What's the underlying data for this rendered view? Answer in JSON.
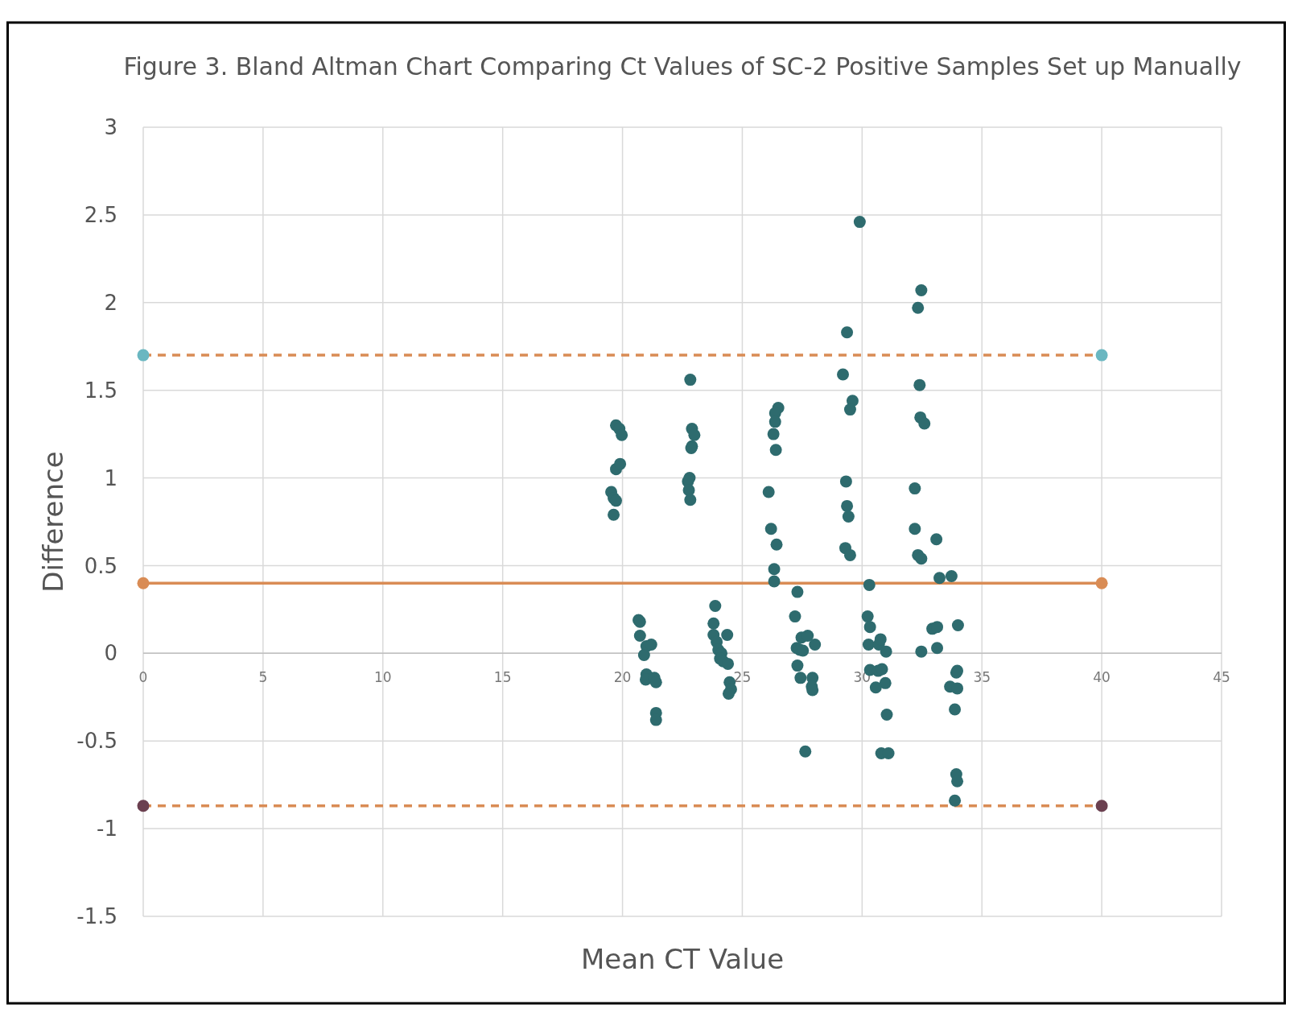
{
  "chart_data": {
    "type": "scatter",
    "title": "Figure 3. Bland Altman Chart Comparing Ct Values of SC-2 Positive Samples Set up Manually",
    "xlabel": "Mean CT Value",
    "ylabel": "Difference",
    "xlim": [
      0,
      45
    ],
    "xticks": [
      0,
      5,
      10,
      15,
      20,
      25,
      30,
      35,
      40,
      45
    ],
    "ylim": [
      -1.5,
      3
    ],
    "yticks": [
      -1.5,
      -1,
      -0.5,
      0,
      0.5,
      1,
      1.5,
      2,
      2.5,
      3
    ],
    "grid": true,
    "marker": "circle",
    "series": [
      {
        "color": "#2e6b6e",
        "x": [
          19.53,
          19.63,
          19.73,
          19.63,
          19.73,
          19.87,
          19.97,
          19.73,
          19.9,
          20.67,
          20.73,
          20.73,
          21,
          21.2,
          20.9,
          21,
          20.97,
          21.33,
          21.4,
          21.4,
          21.4,
          22.83,
          22.9,
          23,
          22.9,
          22.8,
          22.73,
          22.77,
          22.83,
          22.87,
          23.87,
          23.8,
          23.8,
          23.93,
          24,
          24.13,
          24.07,
          24.2,
          24.37,
          24.4,
          24.47,
          24.53,
          24.43,
          26.1,
          26.5,
          26.37,
          26.37,
          26.3,
          26.4,
          26.2,
          26.43,
          26.33,
          26.33,
          27.3,
          27.2,
          27.47,
          27.73,
          27.27,
          27.4,
          27.53,
          28.03,
          27.3,
          27.43,
          27.93,
          27.9,
          27.93,
          27.63,
          29.9,
          29.37,
          29.2,
          29.6,
          29.5,
          29.33,
          29.37,
          29.43,
          29.3,
          29.5,
          30.3,
          30.23,
          30.33,
          30.27,
          30.7,
          30.77,
          31,
          30.33,
          30.67,
          30.83,
          30.97,
          30.57,
          31.03,
          30.8,
          31.1,
          32.47,
          32.33,
          32.4,
          32.43,
          32.6,
          32.2,
          32.2,
          32.33,
          32.47,
          32.47,
          33.1,
          33.23,
          33.73,
          32.93,
          33.13,
          33.13,
          34,
          33.67,
          33.93,
          33.97,
          33.97,
          33.87,
          33.93,
          33.97,
          33.87
        ],
        "values": [
          0.92,
          0.885,
          0.87,
          0.79,
          1.3,
          1.28,
          1.245,
          1.05,
          1.08,
          0.19,
          0.18,
          0.1,
          0.04,
          0.05,
          -0.01,
          -0.12,
          -0.15,
          -0.14,
          -0.165,
          -0.34,
          -0.38,
          1.56,
          1.28,
          1.245,
          1.18,
          1,
          0.98,
          0.93,
          0.875,
          1.17,
          0.27,
          0.17,
          0.105,
          0.065,
          0.02,
          0,
          -0.03,
          -0.045,
          0.105,
          -0.06,
          -0.165,
          -0.205,
          -0.23,
          0.92,
          1.4,
          1.37,
          1.32,
          1.25,
          1.16,
          0.71,
          0.62,
          0.48,
          0.41,
          0.35,
          0.21,
          0.09,
          0.1,
          0.03,
          0.02,
          0.015,
          0.05,
          -0.07,
          -0.14,
          -0.14,
          -0.19,
          -0.21,
          -0.56,
          2.46,
          1.83,
          1.59,
          1.44,
          1.39,
          0.98,
          0.84,
          0.78,
          0.6,
          0.56,
          0.39,
          0.21,
          0.15,
          0.05,
          0.05,
          0.08,
          0.01,
          -0.095,
          -0.1,
          -0.09,
          -0.17,
          -0.195,
          -0.35,
          -0.57,
          -0.57,
          2.07,
          1.97,
          1.53,
          1.345,
          1.31,
          0.94,
          0.71,
          0.56,
          0.54,
          0.01,
          0.65,
          0.43,
          0.44,
          0.14,
          0.15,
          0.03,
          0.16,
          -0.19,
          -0.11,
          -0.1,
          -0.2,
          -0.32,
          -0.69,
          -0.73,
          -0.84
        ]
      },
      {
        "type": "scatter",
        "color": "#6ab7c1",
        "x": [
          0,
          40
        ],
        "values": [
          1.7,
          1.7
        ]
      },
      {
        "type": "scatter",
        "color": "#d98c55",
        "x": [
          0,
          40
        ],
        "values": [
          0.4,
          0.4
        ]
      },
      {
        "type": "scatter",
        "color": "#6b4050",
        "x": [
          0,
          40
        ],
        "values": [
          -0.87,
          -0.87
        ]
      }
    ],
    "ref_lines": [
      {
        "axis": "y",
        "value": 1.7,
        "color": "#d98c55",
        "line_style": "dashed"
      },
      {
        "axis": "y",
        "value": 0.4,
        "color": "#d98c55",
        "line_style": "solid"
      },
      {
        "axis": "y",
        "value": -0.87,
        "color": "#d98c55",
        "line_style": "dashed"
      }
    ]
  }
}
